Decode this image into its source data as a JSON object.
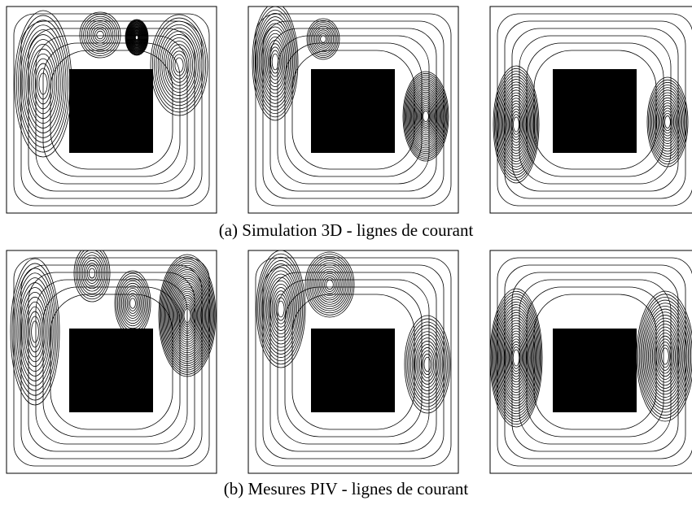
{
  "figure": {
    "subfigures": [
      {
        "caption": "(a) Simulation 3D - lignes de courant"
      },
      {
        "caption": "(b) Mesures PIV - lignes de courant"
      }
    ]
  }
}
